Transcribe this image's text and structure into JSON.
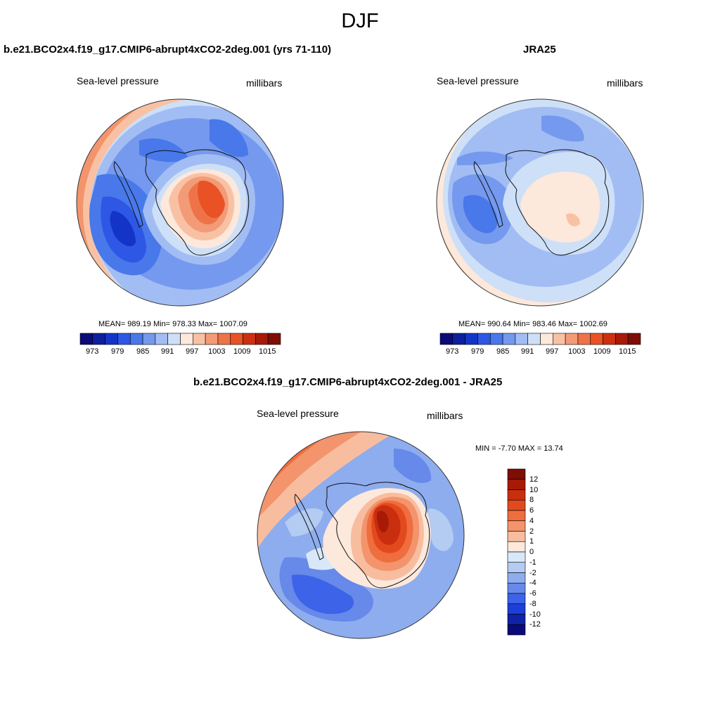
{
  "title": "DJF",
  "palettes": {
    "slp": [
      "#0a0a78",
      "#0d1f9e",
      "#1434c8",
      "#2e57e6",
      "#4878ea",
      "#7499ee",
      "#a2bdf3",
      "#cde0f7",
      "#fde8dc",
      "#f9c1a4",
      "#f39a77",
      "#ee7349",
      "#e85224",
      "#cc3010",
      "#a81a08",
      "#7e0d06"
    ],
    "diff": [
      "#7e0d06",
      "#a81a08",
      "#c92e0f",
      "#e24a1d",
      "#ef6d3e",
      "#f3946c",
      "#f8bd9f",
      "#fde8dc",
      "#d9e8f8",
      "#b4cbf2",
      "#8eadee",
      "#6689ea",
      "#3d63e8",
      "#1c3fd8",
      "#0e23a8",
      "#0a0a78"
    ]
  },
  "panels": {
    "model": {
      "title": "b.e21.BCO2x4.f19_g17.CMIP6-abrupt4xCO2-2deg.001 (yrs 71-110)",
      "left_label": "Sea-level pressure",
      "right_label": "millibars",
      "stats": "MEAN= 989.19  Min= 978.33  Max= 1007.09",
      "colorbar_ticks": [
        "973",
        "979",
        "985",
        "991",
        "997",
        "1003",
        "1009",
        "1015"
      ]
    },
    "obs": {
      "title": "JRA25",
      "left_label": "Sea-level pressure",
      "right_label": "millibars",
      "stats": "MEAN= 990.64  Min= 983.46  Max= 1002.69",
      "colorbar_ticks": [
        "973",
        "979",
        "985",
        "991",
        "997",
        "1003",
        "1009",
        "1015"
      ]
    },
    "diff": {
      "title": "b.e21.BCO2x4.f19_g17.CMIP6-abrupt4xCO2-2deg.001 - JRA25",
      "left_label": "Sea-level pressure",
      "right_label": "millibars",
      "stats": "MIN =  -7.70 MAX =  13.74",
      "colorbar_ticks": [
        "12",
        "10",
        "8",
        "6",
        "4",
        "2",
        "1",
        "0",
        "-1",
        "-2",
        "-4",
        "-6",
        "-8",
        "-10",
        "-12"
      ]
    }
  }
}
